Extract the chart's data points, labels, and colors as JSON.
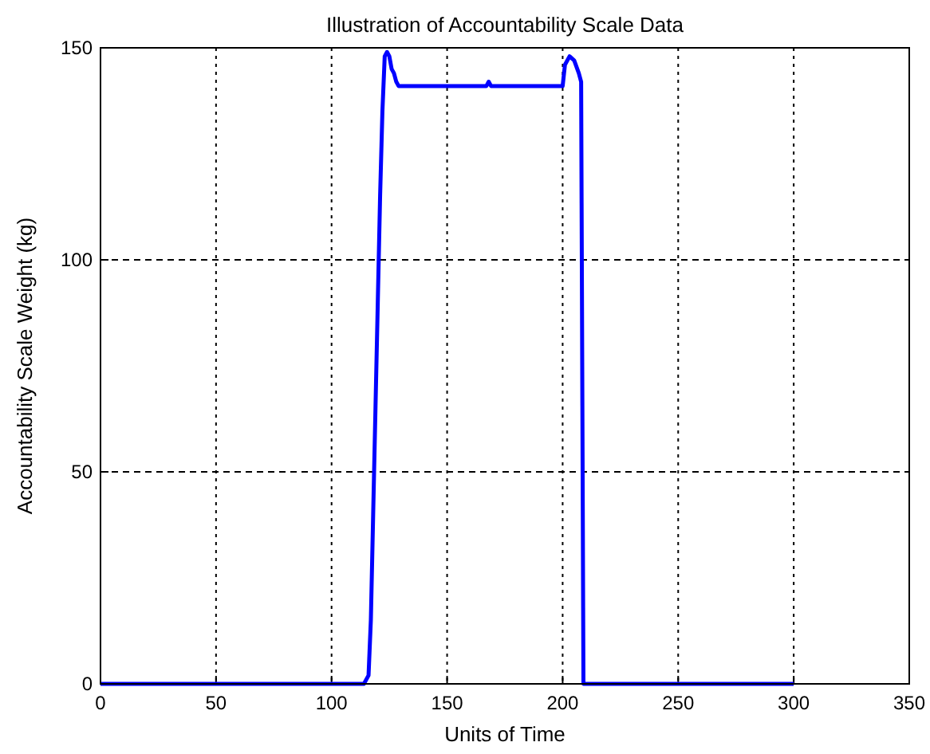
{
  "chart_data": {
    "type": "line",
    "title": "Illustration of Accountability Scale Data",
    "xlabel": "Units of Time",
    "ylabel": "Accountability Scale Weight (kg)",
    "x": [
      0,
      114,
      116,
      117,
      118,
      119,
      120,
      121,
      122,
      123,
      124,
      125,
      126,
      127,
      128,
      129,
      167,
      168,
      169,
      200,
      201,
      203,
      205,
      207,
      208,
      209,
      300
    ],
    "series": [
      {
        "color": "#0000ff",
        "values": [
          0,
          0,
          2,
          15,
          40,
          65,
          90,
          115,
          135,
          148,
          149,
          148,
          145,
          144,
          142,
          141,
          141,
          142,
          141,
          141,
          146,
          148,
          147,
          144,
          142,
          0,
          0
        ]
      }
    ],
    "xlim": [
      0,
      350
    ],
    "xticks": [
      0,
      50,
      100,
      150,
      200,
      250,
      300,
      350
    ],
    "ylim": [
      0,
      150
    ],
    "yticks": [
      0,
      50,
      100,
      150
    ],
    "grid": true,
    "line_style": "solid"
  }
}
